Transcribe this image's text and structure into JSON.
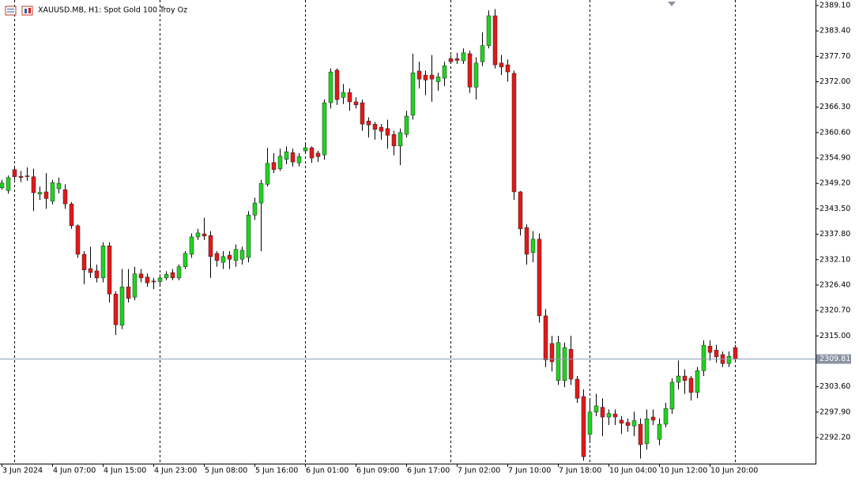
{
  "chart_data": {
    "type": "candlestick",
    "title": "XAUUSD.MB, H1:  Spot Gold 100 Troy Oz",
    "categories": [
      "3 Jun 2024",
      null,
      null,
      null,
      null,
      null,
      null,
      null,
      "4 Jun 07:00",
      null,
      null,
      null,
      null,
      null,
      null,
      null,
      "4 Jun 15:00",
      null,
      null,
      null,
      null,
      null,
      null,
      null,
      "4 Jun 23:00",
      null,
      null,
      null,
      null,
      null,
      null,
      null,
      "5 Jun 08:00",
      null,
      null,
      null,
      null,
      null,
      null,
      null,
      "5 Jun 16:00",
      null,
      null,
      null,
      null,
      null,
      null,
      null,
      "6 Jun 01:00",
      null,
      null,
      null,
      null,
      null,
      null,
      null,
      "6 Jun 09:00",
      null,
      null,
      null,
      null,
      null,
      null,
      null,
      "6 Jun 17:00",
      null,
      null,
      null,
      null,
      null,
      null,
      null,
      "7 Jun 02:00",
      null,
      null,
      null,
      null,
      null,
      null,
      null,
      "7 Jun 10:00",
      null,
      null,
      null,
      null,
      null,
      null,
      null,
      "7 Jun 18:00",
      null,
      null,
      null,
      null,
      null,
      null,
      null,
      "10 Jun 04:00",
      null,
      null,
      null,
      null,
      null,
      null,
      null,
      "10 Jun 12:00",
      null,
      null,
      null,
      null,
      null,
      null,
      null,
      "10 Jun 20:00",
      null,
      null,
      null,
      null
    ],
    "open": [
      2348.2,
      2347.6,
      2352.3,
      2350.8,
      2350.9,
      2350.7,
      2346.8,
      2347.3,
      2345.2,
      2348.0,
      2347.8,
      2344.6,
      2339.7,
      2333.3,
      2330.1,
      2329.6,
      2328.0,
      2335.2,
      2324.4,
      2317.4,
      2326.0,
      2323.7,
      2328.9,
      2328.2,
      2327.3,
      2327.2,
      2328.0,
      2329.2,
      2328.0,
      2330.5,
      2333.3,
      2337.2,
      2337.9,
      2337.5,
      2333.5,
      2331.5,
      2333.1,
      2331.9,
      2332.2,
      2332.6,
      2342.1,
      2344.8,
      2349.0,
      2353.9,
      2352.5,
      2354.6,
      2356.1,
      2353.8,
      2356.5,
      2357.2,
      2356.0,
      2355.6,
      2367.3,
      2374.6,
      2368.5,
      2369.6,
      2367.5,
      2367.3,
      2363.2,
      2362.5,
      2361.8,
      2361.5,
      2360.2,
      2357.6,
      2360.2,
      2364.5,
      2374.4,
      2373.5,
      2373.5,
      2372.0,
      2372.8,
      2377.2,
      2377.2,
      2376.7,
      2378.3,
      2370.8,
      2376.5,
      2380.1,
      2386.8,
      2376.2,
      2375.8,
      2373.9,
      2347.3,
      2339.3,
      2333.7,
      2336.7,
      2319.5,
      2313.3,
      2305.0,
      2305.0,
      2312.0,
      2305.3,
      2301.4,
      2292.9,
      2297.9,
      2299.0,
      2296.8,
      2297.5,
      2296.1,
      2295.6,
      2294.8,
      2295.2,
      2290.8,
      2296.8,
      2291.8,
      2295.2,
      2298.6,
      2304.6,
      2306.0,
      2305.5,
      2302.3,
      2307.2,
      2312.7,
      2311.8,
      2310.8,
      2308.8,
      2312.4
    ],
    "high": [
      2350.0,
      2351.0,
      2353.0,
      2352.0,
      2352.8,
      2352.5,
      2348.5,
      2351.5,
      2350.0,
      2350.5,
      2349.0,
      2345.0,
      2340.0,
      2334.0,
      2335.0,
      2331.0,
      2336.0,
      2336.0,
      2325.0,
      2330.0,
      2330.0,
      2330.5,
      2330.0,
      2329.0,
      2328.0,
      2328.8,
      2329.5,
      2330.0,
      2331.0,
      2334.0,
      2338.0,
      2339.0,
      2341.5,
      2338.5,
      2334.0,
      2334.0,
      2334.0,
      2335.5,
      2335.0,
      2343.0,
      2346.0,
      2350.0,
      2357.2,
      2356.0,
      2357.0,
      2357.5,
      2357.0,
      2356.0,
      2358.0,
      2357.5,
      2356.5,
      2368.0,
      2375.0,
      2375.0,
      2371.5,
      2370.5,
      2368.5,
      2368.0,
      2364.0,
      2363.0,
      2362.5,
      2363.5,
      2361.0,
      2361.5,
      2365.5,
      2378.3,
      2376.5,
      2374.5,
      2378.0,
      2374.0,
      2376.5,
      2378.0,
      2378.5,
      2379.5,
      2379.0,
      2377.5,
      2383.1,
      2388.0,
      2388.3,
      2378.0,
      2377.0,
      2374.5,
      2347.5,
      2340.0,
      2338.5,
      2338.0,
      2321.0,
      2315.0,
      2315.0,
      2313.5,
      2315.0,
      2306.0,
      2303.0,
      2300.5,
      2302.0,
      2301.0,
      2298.5,
      2298.5,
      2297.0,
      2296.5,
      2298.0,
      2296.5,
      2298.5,
      2298.5,
      2296.5,
      2300.0,
      2305.5,
      2309.5,
      2307.5,
      2306.0,
      2308.0,
      2314.0,
      2314.0,
      2313.0,
      2311.5,
      2311.5,
      2313.0
    ],
    "low": [
      2347.8,
      2346.9,
      2350.0,
      2349.5,
      2349.8,
      2343.0,
      2345.5,
      2343.5,
      2344.5,
      2347.0,
      2343.5,
      2339.0,
      2332.5,
      2326.6,
      2328.0,
      2327.0,
      2327.0,
      2322.5,
      2315.2,
      2316.5,
      2322.5,
      2323.0,
      2327.0,
      2326.0,
      2325.5,
      2326.5,
      2327.5,
      2327.5,
      2327.5,
      2330.0,
      2332.5,
      2336.5,
      2336.5,
      2328.0,
      2330.5,
      2330.0,
      2330.0,
      2330.5,
      2331.0,
      2331.5,
      2341.0,
      2334.0,
      2348.5,
      2351.5,
      2352.0,
      2353.5,
      2353.0,
      2353.0,
      2356.0,
      2353.8,
      2354.0,
      2354.5,
      2366.0,
      2366.8,
      2367.0,
      2365.5,
      2366.0,
      2361.0,
      2359.5,
      2359.0,
      2359.0,
      2357.0,
      2355.5,
      2353.3,
      2359.5,
      2363.5,
      2370.5,
      2369.0,
      2367.5,
      2370.0,
      2371.0,
      2376.0,
      2376.0,
      2376.0,
      2369.5,
      2368.0,
      2375.5,
      2379.5,
      2375.0,
      2373.5,
      2372.0,
      2345.5,
      2337.5,
      2331.0,
      2331.5,
      2318.0,
      2308.0,
      2307.0,
      2304.0,
      2303.5,
      2304.0,
      2300.0,
      2287.0,
      2291.5,
      2297.0,
      2292.5,
      2295.0,
      2295.0,
      2293.0,
      2293.5,
      2292.5,
      2287.5,
      2289.5,
      2295.0,
      2290.5,
      2294.5,
      2297.5,
      2303.0,
      2302.0,
      2300.5,
      2301.0,
      2306.0,
      2309.5,
      2309.0,
      2308.0,
      2308.0,
      2309.5
    ],
    "close": [
      2349.3,
      2350.5,
      2350.7,
      2350.5,
      2350.8,
      2347.1,
      2347.2,
      2345.8,
      2349.4,
      2349.2,
      2344.6,
      2339.7,
      2333.3,
      2329.8,
      2329.2,
      2328.0,
      2335.2,
      2324.4,
      2317.5,
      2326.0,
      2323.4,
      2328.9,
      2328.0,
      2326.9,
      2327.1,
      2328.0,
      2328.8,
      2328.0,
      2330.5,
      2333.5,
      2337.2,
      2338.1,
      2337.4,
      2332.8,
      2331.9,
      2332.8,
      2332.2,
      2334.4,
      2334.2,
      2342.1,
      2344.8,
      2349.2,
      2353.7,
      2352.3,
      2355.3,
      2356.3,
      2354.0,
      2355.2,
      2357.2,
      2354.9,
      2355.2,
      2367.3,
      2374.2,
      2368.0,
      2369.6,
      2367.5,
      2366.8,
      2362.5,
      2362.3,
      2361.3,
      2360.9,
      2360.0,
      2357.6,
      2360.6,
      2364.3,
      2374.0,
      2372.6,
      2372.4,
      2372.6,
      2373.1,
      2375.6,
      2376.5,
      2376.8,
      2378.5,
      2370.8,
      2376.2,
      2380.1,
      2386.8,
      2375.8,
      2375.3,
      2374.2,
      2347.3,
      2339.0,
      2333.3,
      2336.7,
      2319.5,
      2309.6,
      2309.2,
      2313.5,
      2312.4,
      2305.3,
      2301.0,
      2287.9,
      2297.9,
      2299.3,
      2296.8,
      2297.6,
      2296.8,
      2295.4,
      2294.9,
      2296.0,
      2290.6,
      2296.4,
      2296.1,
      2295.2,
      2298.7,
      2304.6,
      2306.0,
      2305.0,
      2302.3,
      2307.2,
      2312.9,
      2311.3,
      2310.3,
      2308.8,
      2310.4,
      2309.81
    ],
    "up_color": "#1fd41f",
    "down_color": "#e31818",
    "current_price": 2309.81,
    "ylim": [
      2286.35,
      2390.34
    ],
    "yticks": [
      {
        "value": 2389.1,
        "label": "2389.10"
      },
      {
        "value": 2383.4,
        "label": "2383.40"
      },
      {
        "value": 2377.7,
        "label": "2377.70"
      },
      {
        "value": 2372.0,
        "label": "2372.00"
      },
      {
        "value": 2366.3,
        "label": "2366.30"
      },
      {
        "value": 2360.6,
        "label": "2360.60"
      },
      {
        "value": 2354.9,
        "label": "2354.90"
      },
      {
        "value": 2349.2,
        "label": "2349.20"
      },
      {
        "value": 2343.5,
        "label": "2343.50"
      },
      {
        "value": 2337.8,
        "label": "2337.80"
      },
      {
        "value": 2332.1,
        "label": "2332.10"
      },
      {
        "value": 2326.4,
        "label": "2326.40"
      },
      {
        "value": 2320.7,
        "label": "2320.70"
      },
      {
        "value": 2315.0,
        "label": "2315.00"
      },
      {
        "value": 2303.6,
        "label": "2303.60"
      },
      {
        "value": 2297.9,
        "label": "2297.90"
      },
      {
        "value": 2292.2,
        "label": "2292.20"
      }
    ]
  }
}
